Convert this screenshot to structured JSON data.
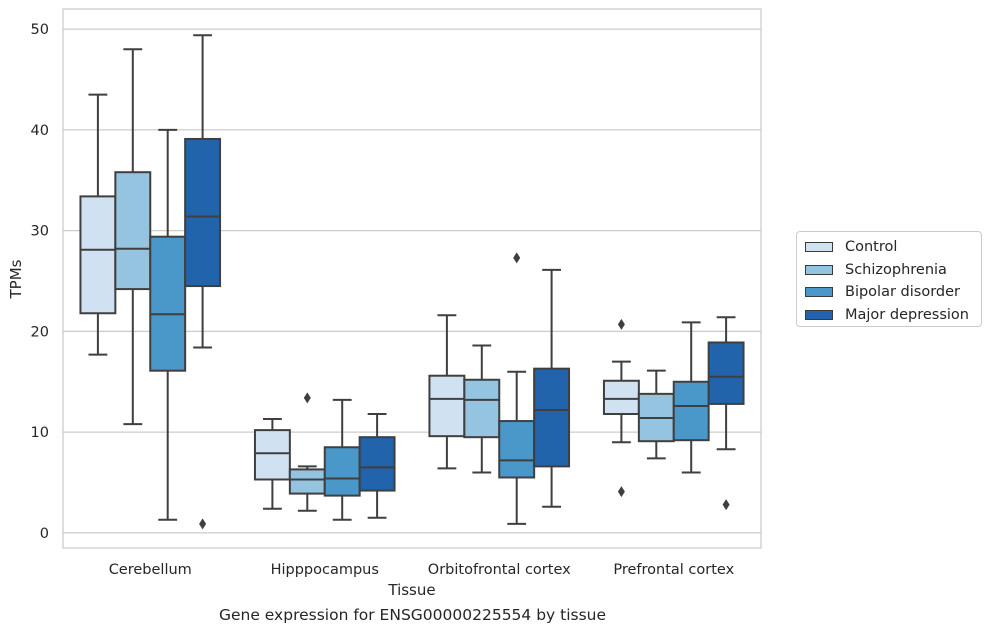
{
  "caption": "Gene expression for ENSG00000225554 by tissue",
  "chart_data": {
    "type": "box",
    "xlabel": "Tissue",
    "ylabel": "TPMs",
    "ylim": [
      -1.5,
      52
    ],
    "yticks": [
      0,
      10,
      20,
      30,
      40,
      50
    ],
    "grid": true,
    "legend_position": "right",
    "categories": [
      "Cerebellum",
      "Hipppocampus",
      "Orbitofrontal cortex",
      "Prefrontal cortex"
    ],
    "series": [
      {
        "name": "Control",
        "color": "#d0e1f2",
        "boxes": [
          {
            "whislo": 17.7,
            "q1": 21.8,
            "med": 28.1,
            "q3": 33.4,
            "whishi": 43.5,
            "fliers": []
          },
          {
            "whislo": 2.4,
            "q1": 5.3,
            "med": 7.9,
            "q3": 10.2,
            "whishi": 11.3,
            "fliers": []
          },
          {
            "whislo": 6.4,
            "q1": 9.6,
            "med": 13.3,
            "q3": 15.6,
            "whishi": 21.6,
            "fliers": []
          },
          {
            "whislo": 9.0,
            "q1": 11.8,
            "med": 13.3,
            "q3": 15.1,
            "whishi": 17.0,
            "fliers": [
              4.1,
              20.7
            ]
          }
        ]
      },
      {
        "name": "Schizophrenia",
        "color": "#94c4df",
        "boxes": [
          {
            "whislo": 10.8,
            "q1": 24.2,
            "med": 28.2,
            "q3": 35.8,
            "whishi": 48.0,
            "fliers": []
          },
          {
            "whislo": 2.2,
            "q1": 3.9,
            "med": 5.3,
            "q3": 6.3,
            "whishi": 6.6,
            "fliers": [
              13.4
            ]
          },
          {
            "whislo": 6.0,
            "q1": 9.5,
            "med": 13.2,
            "q3": 15.2,
            "whishi": 18.6,
            "fliers": []
          },
          {
            "whislo": 7.4,
            "q1": 9.1,
            "med": 11.4,
            "q3": 13.8,
            "whishi": 16.1,
            "fliers": []
          }
        ]
      },
      {
        "name": "Bipolar disorder",
        "color": "#4a98c9",
        "boxes": [
          {
            "whislo": 1.3,
            "q1": 16.1,
            "med": 21.7,
            "q3": 29.4,
            "whishi": 40.0,
            "fliers": []
          },
          {
            "whislo": 1.3,
            "q1": 3.7,
            "med": 5.4,
            "q3": 8.5,
            "whishi": 13.2,
            "fliers": []
          },
          {
            "whislo": 0.9,
            "q1": 5.5,
            "med": 7.2,
            "q3": 11.1,
            "whishi": 16.0,
            "fliers": [
              27.3
            ]
          },
          {
            "whislo": 6.0,
            "q1": 9.2,
            "med": 12.6,
            "q3": 15.0,
            "whishi": 20.9,
            "fliers": []
          }
        ]
      },
      {
        "name": "Major depression",
        "color": "#2164ab",
        "boxes": [
          {
            "whislo": 18.4,
            "q1": 24.5,
            "med": 31.4,
            "q3": 39.1,
            "whishi": 49.4,
            "fliers": [
              0.9
            ]
          },
          {
            "whislo": 1.5,
            "q1": 4.2,
            "med": 6.5,
            "q3": 9.5,
            "whishi": 11.8,
            "fliers": []
          },
          {
            "whislo": 2.6,
            "q1": 6.6,
            "med": 12.2,
            "q3": 16.3,
            "whishi": 26.1,
            "fliers": []
          },
          {
            "whislo": 8.3,
            "q1": 12.8,
            "med": 15.5,
            "q3": 18.9,
            "whishi": 21.4,
            "fliers": [
              2.8
            ]
          }
        ]
      }
    ]
  }
}
